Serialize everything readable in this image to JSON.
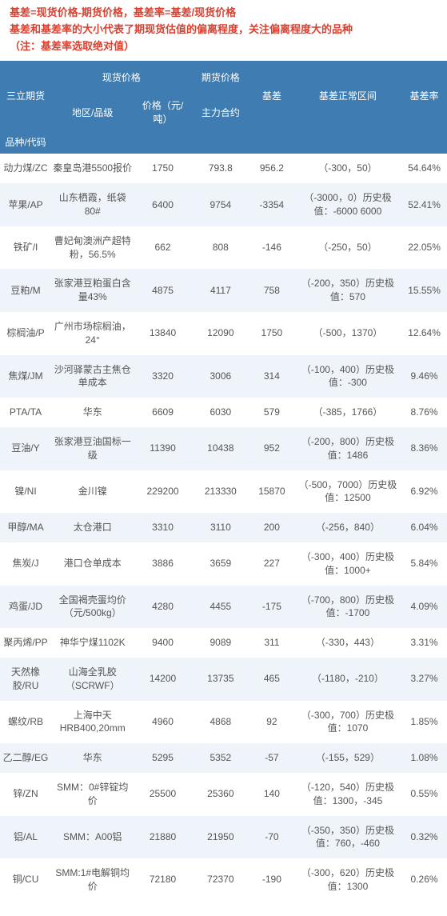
{
  "notes": {
    "line1": "基差=现货价格-期货价格，基差率=基差/现货价格",
    "line2": "基差和基差率的大小代表了期现货估值的偏离程度，关注偏离程度大的品种",
    "line3": "（注：基差率选取绝对值）"
  },
  "header": {
    "top_left": "三立期货",
    "spot_group": "现货价格",
    "fut_group": "期货价格",
    "code": "品种/代码",
    "region": "地区/品级",
    "price": "价格（元/吨）",
    "fut": "主力合约",
    "basis": "基差",
    "range": "基差正常区间",
    "rate": "基差率"
  },
  "rows": [
    {
      "code": "动力煤/ZC",
      "region": "秦皇岛港5500报价",
      "price": "1750",
      "fut": "793.8",
      "basis": "956.2",
      "range": "（-300，50）",
      "rate": "54.64%"
    },
    {
      "code": "苹果/AP",
      "region": "山东栖霞，纸袋80#",
      "price": "6400",
      "fut": "9754",
      "basis": "-3354",
      "range": "（-3000，0）历史极值：-6000 6000",
      "rate": "52.41%"
    },
    {
      "code": "铁矿/I",
      "region": "曹妃甸澳洲产超特粉，56.5%",
      "price": "662",
      "fut": "808",
      "basis": "-146",
      "range": "（-250，50）",
      "rate": "22.05%"
    },
    {
      "code": "豆粕/M",
      "region": "张家港豆粕蛋白含量43%",
      "price": "4875",
      "fut": "4117",
      "basis": "758",
      "range": "（-200，350）历史极值：570",
      "rate": "15.55%"
    },
    {
      "code": "棕榈油/P",
      "region": "广州市场棕榈油，24°",
      "price": "13840",
      "fut": "12090",
      "basis": "1750",
      "range": "（-500，1370）",
      "rate": "12.64%"
    },
    {
      "code": "焦煤/JM",
      "region": "沙河驿蒙古主焦仓单成本",
      "price": "3320",
      "fut": "3006",
      "basis": "314",
      "range": "（-100，400）历史极值：-300",
      "rate": "9.46%"
    },
    {
      "code": "PTA/TA",
      "region": "华东",
      "price": "6609",
      "fut": "6030",
      "basis": "579",
      "range": "（-385，1766）",
      "rate": "8.76%"
    },
    {
      "code": "豆油/Y",
      "region": "张家港豆油国标一级",
      "price": "11390",
      "fut": "10438",
      "basis": "952",
      "range": "（-200，800）历史极值：1486",
      "rate": "8.36%"
    },
    {
      "code": "镍/NI",
      "region": "金川镍",
      "price": "229200",
      "fut": "213330",
      "basis": "15870",
      "range": "（-500，7000）历史极值：12500",
      "rate": "6.92%"
    },
    {
      "code": "甲醇/MA",
      "region": "太仓港口",
      "price": "3310",
      "fut": "3110",
      "basis": "200",
      "range": "（-256，840）",
      "rate": "6.04%"
    },
    {
      "code": "焦炭/J",
      "region": "港口仓单成本",
      "price": "3886",
      "fut": "3659",
      "basis": "227",
      "range": "（-300，400）历史极值：1000+",
      "rate": "5.84%"
    },
    {
      "code": "鸡蛋/JD",
      "region": "全国褐壳蛋均价（元/500kg）",
      "price": "4280",
      "fut": "4455",
      "basis": "-175",
      "range": "（-700，800）历史极值：-1700",
      "rate": "4.09%"
    },
    {
      "code": "聚丙烯/PP",
      "region": "神华宁煤1102K",
      "price": "9400",
      "fut": "9089",
      "basis": "311",
      "range": "（-330，443）",
      "rate": "3.31%"
    },
    {
      "code": "天然橡胶/RU",
      "region": "山海全乳胶（SCRWF）",
      "price": "14200",
      "fut": "13735",
      "basis": "465",
      "range": "（-1180，-210）",
      "rate": "3.27%"
    },
    {
      "code": "螺纹/RB",
      "region": "上海中天HRB400,20mm",
      "price": "4960",
      "fut": "4868",
      "basis": "92",
      "range": "（-300，700）历史极值：1070",
      "rate": "1.85%"
    },
    {
      "code": "乙二醇/EG",
      "region": "华东",
      "price": "5295",
      "fut": "5352",
      "basis": "-57",
      "range": "（-155，529）",
      "rate": "1.08%"
    },
    {
      "code": "锌/ZN",
      "region": "SMM：0#锌锭均价",
      "price": "25500",
      "fut": "25360",
      "basis": "140",
      "range": "（-120，540）历史极值：1300，-345",
      "rate": "0.55%"
    },
    {
      "code": "铝/AL",
      "region": "SMM：A00铝",
      "price": "21880",
      "fut": "21950",
      "basis": "-70",
      "range": "（-350，350）历史极值：760，-460",
      "rate": "0.32%"
    },
    {
      "code": "铜/CU",
      "region": "SMM:1#电解铜均价",
      "price": "72180",
      "fut": "72370",
      "basis": "-190",
      "range": "（-300，620）历史极值：1300",
      "rate": "0.26%"
    }
  ],
  "colors": {
    "header_bg": "#3e7cb1",
    "note_color": "#d94030",
    "row_even": "#eef4f9",
    "row_odd": "#ffffff"
  }
}
